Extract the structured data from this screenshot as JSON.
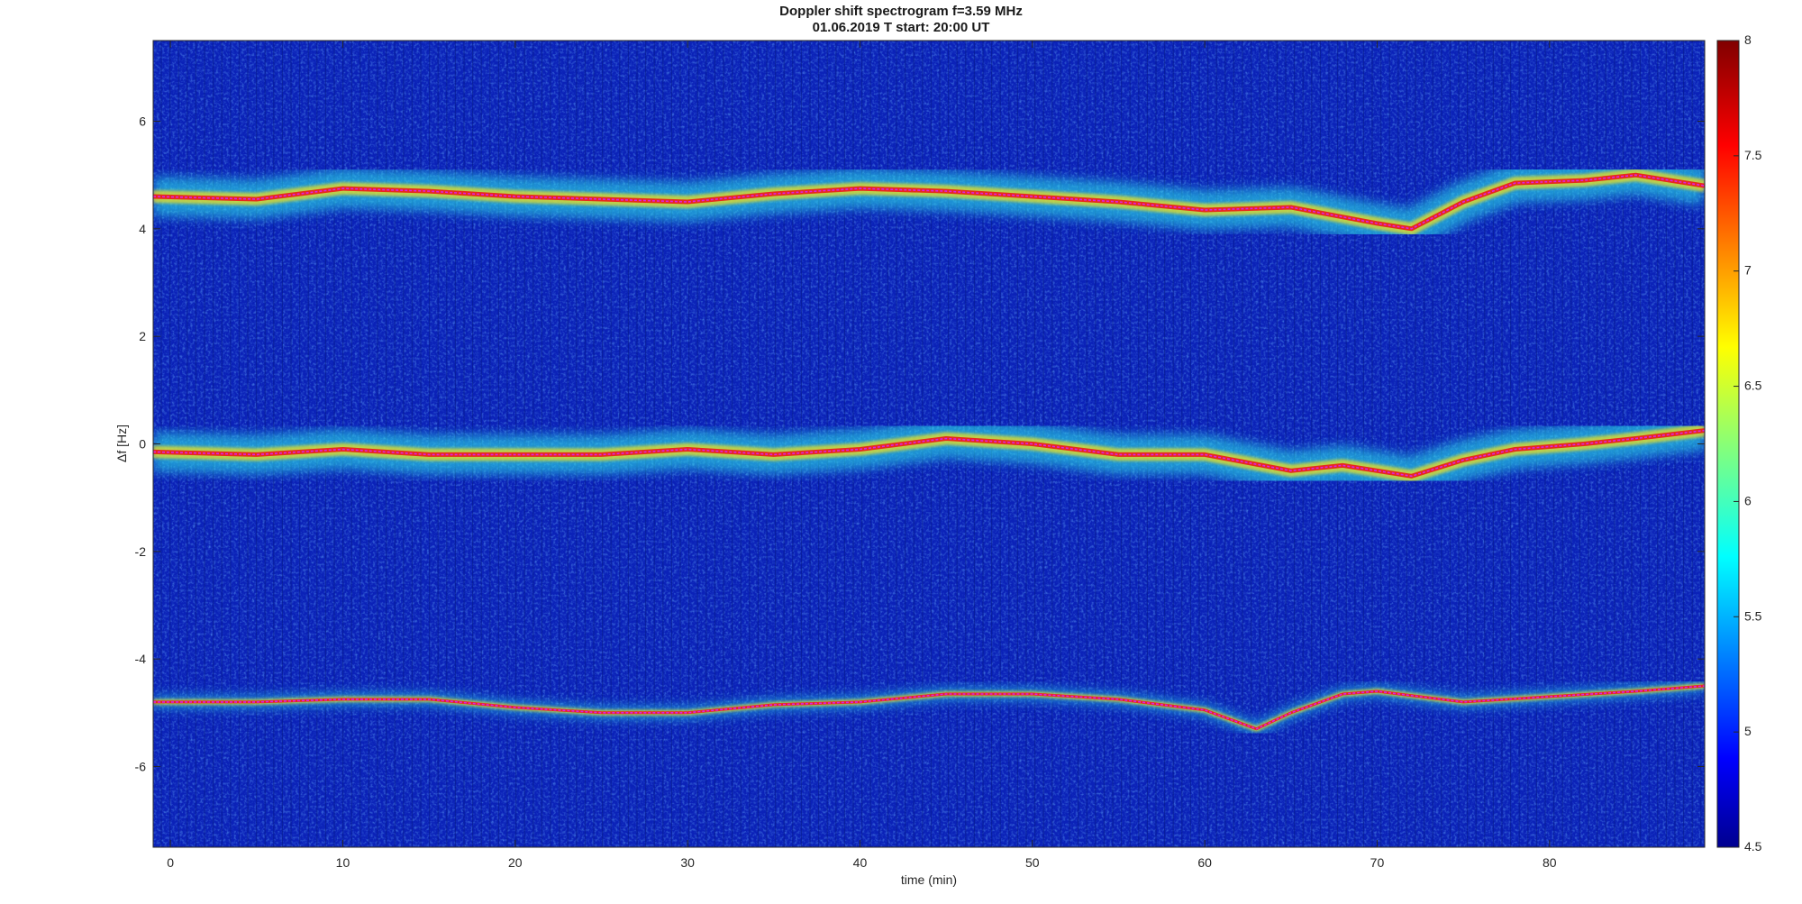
{
  "chart_data": {
    "type": "heatmap",
    "title": "Doppler shift spectrogram f=3.59 MHz",
    "subtitle": "01.06.2019    T start: 20:00 UT",
    "xlabel": "time (min)",
    "ylabel": "Δf [Hz]",
    "xlim": [
      -1,
      89
    ],
    "ylim": [
      -7.5,
      7.5
    ],
    "x_ticks": [
      0,
      10,
      20,
      30,
      40,
      50,
      60,
      70,
      80
    ],
    "y_ticks": [
      -6,
      -4,
      -2,
      0,
      2,
      4,
      6
    ],
    "colorbar": {
      "range": [
        4.5,
        8
      ],
      "ticks": [
        4.5,
        5,
        5.5,
        6,
        6.5,
        7,
        7.5,
        8
      ],
      "colormap": "jet"
    },
    "traces": [
      {
        "id": "upper",
        "x": [
          -1,
          5,
          10,
          15,
          20,
          25,
          30,
          35,
          40,
          45,
          50,
          55,
          60,
          65,
          70,
          72,
          75,
          78,
          82,
          85,
          89
        ],
        "y": [
          4.6,
          4.55,
          4.75,
          4.7,
          4.6,
          4.55,
          4.5,
          4.65,
          4.75,
          4.7,
          4.6,
          4.5,
          4.35,
          4.4,
          4.1,
          4.0,
          4.5,
          4.85,
          4.9,
          5.0,
          4.8
        ]
      },
      {
        "id": "middle",
        "x": [
          -1,
          5,
          10,
          15,
          20,
          25,
          30,
          35,
          40,
          45,
          50,
          55,
          60,
          65,
          68,
          70,
          72,
          75,
          78,
          82,
          85,
          89
        ],
        "y": [
          -0.15,
          -0.2,
          -0.1,
          -0.2,
          -0.2,
          -0.2,
          -0.1,
          -0.2,
          -0.1,
          0.1,
          0.0,
          -0.2,
          -0.2,
          -0.5,
          -0.4,
          -0.5,
          -0.6,
          -0.3,
          -0.1,
          0.0,
          0.1,
          0.25
        ]
      },
      {
        "id": "lower",
        "x": [
          -1,
          5,
          10,
          15,
          20,
          25,
          30,
          35,
          40,
          45,
          50,
          55,
          60,
          63,
          65,
          68,
          70,
          75,
          80,
          85,
          89
        ],
        "y": [
          -4.8,
          -4.8,
          -4.75,
          -4.75,
          -4.9,
          -5.0,
          -5.0,
          -4.85,
          -4.8,
          -4.65,
          -4.65,
          -4.75,
          -4.95,
          -5.3,
          -5.0,
          -4.65,
          -4.6,
          -4.8,
          -4.7,
          -4.6,
          -4.5
        ]
      }
    ],
    "colors": {
      "background": "#0b22b8",
      "trace_line": "#e020e0",
      "spectral_line": "#e8201a",
      "halo": "#2ce0e8",
      "marker_line": "#111111"
    }
  }
}
